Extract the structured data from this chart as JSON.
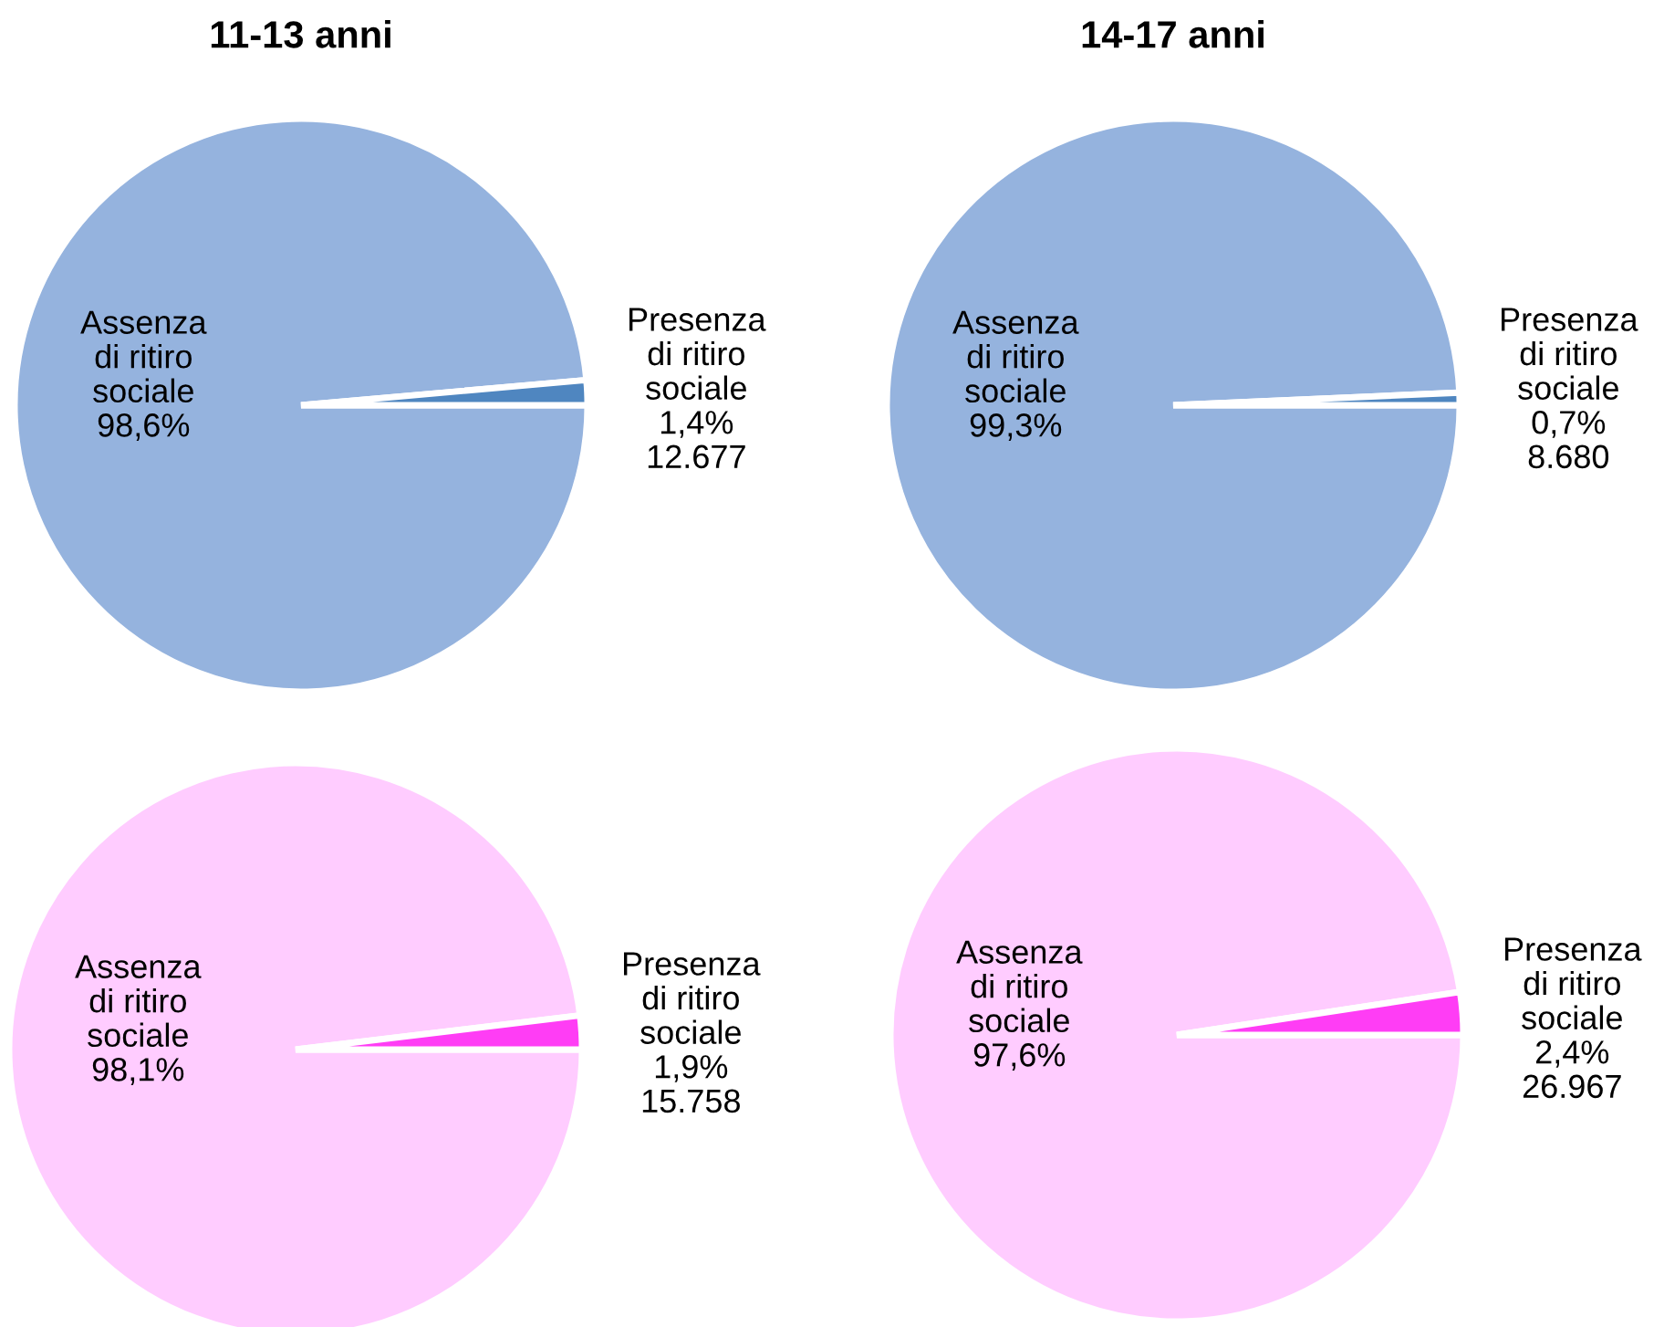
{
  "chart_data": [
    {
      "type": "pie",
      "title": "11-13 anni",
      "categories": [
        "Assenza\ndi ritiro\nsociale",
        "Presenza\ndi ritiro\nsociale"
      ],
      "values": [
        98.6,
        1.4
      ],
      "colors": [
        "#95b3de",
        "#4f86c0"
      ],
      "value_labels": [
        "98,6%",
        "1,4%\n12.677"
      ],
      "legend": false
    },
    {
      "type": "pie",
      "title": "14-17 anni",
      "categories": [
        "Assenza\ndi ritiro\nsociale",
        "Presenza\ndi ritiro\nsociale"
      ],
      "values": [
        99.3,
        0.7
      ],
      "colors": [
        "#95b3de",
        "#4f86c0"
      ],
      "value_labels": [
        "99,3%",
        "0,7%\n8.680"
      ],
      "legend": false
    },
    {
      "type": "pie",
      "categories": [
        "Assenza\ndi ritiro\nsociale",
        "Presenza\ndi ritiro\nsociale"
      ],
      "values": [
        98.1,
        1.9
      ],
      "colors": [
        "#ffccff",
        "#ff3df5"
      ],
      "value_labels": [
        "98,1%",
        "1,9%\n15.758"
      ],
      "legend": false
    },
    {
      "type": "pie",
      "categories": [
        "Assenza\ndi ritiro\nsociale",
        "Presenza\ndi ritiro\nsociale"
      ],
      "values": [
        97.6,
        2.4
      ],
      "colors": [
        "#ffccff",
        "#ff3df5"
      ],
      "value_labels": [
        "97,6%",
        "2,4%\n26.967"
      ],
      "legend": false
    }
  ]
}
